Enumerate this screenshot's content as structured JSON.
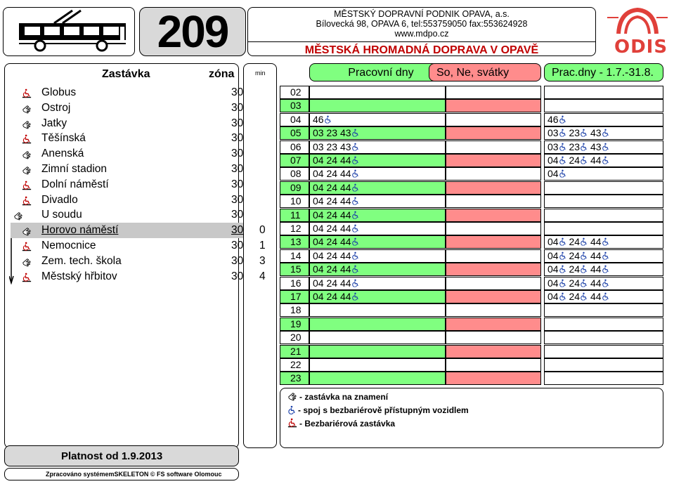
{
  "header": {
    "route": "209",
    "company_lines": [
      "MĚSTSKÝ DOPRAVNÍ PODNIK OPAVA, a.s.",
      "Bílovecká 98, OPAVA 6, tel:553759050 fax:553624928",
      "www.mdpo.cz"
    ],
    "company_title": "MĚSTSKÁ HROMADNÁ DOPRAVA V OPAVĚ",
    "logo_text": "ODIS"
  },
  "stops_header": {
    "stop": "Zastávka",
    "zone": "zóna",
    "min": "min"
  },
  "stops": [
    {
      "name": "Globus",
      "zone": "30",
      "min": "",
      "icons": [
        "barrier-free"
      ]
    },
    {
      "name": "Ostroj",
      "zone": "30",
      "min": "",
      "icons": [
        "on-request"
      ]
    },
    {
      "name": "Jatky",
      "zone": "30",
      "min": "",
      "icons": [
        "on-request"
      ]
    },
    {
      "name": "Těšínská",
      "zone": "30",
      "min": "",
      "icons": [
        "barrier-free"
      ]
    },
    {
      "name": "Anenská",
      "zone": "30",
      "min": "",
      "icons": [
        "on-request"
      ]
    },
    {
      "name": "Zimní stadion",
      "zone": "30",
      "min": "",
      "icons": [
        "on-request"
      ]
    },
    {
      "name": "Dolní náměstí",
      "zone": "30",
      "min": "",
      "icons": [
        "barrier-free"
      ]
    },
    {
      "name": "Divadlo",
      "zone": "30",
      "min": "",
      "icons": [
        "barrier-free"
      ]
    },
    {
      "name": "U soudu",
      "zone": "30",
      "min": "",
      "icons": [
        "on-request",
        "barrier-free"
      ]
    },
    {
      "name": "Horovo náměstí",
      "zone": "30",
      "min": "0",
      "icons": [
        "on-request"
      ],
      "current": true
    },
    {
      "name": "Nemocnice",
      "zone": "30",
      "min": "1",
      "icons": [
        "barrier-free"
      ]
    },
    {
      "name": "Zem. tech. škola",
      "zone": "30",
      "min": "3",
      "icons": [
        "on-request"
      ]
    },
    {
      "name": "Městský hřbitov",
      "zone": "30",
      "min": "4",
      "icons": [
        "barrier-free"
      ]
    }
  ],
  "timetable": {
    "columns": [
      "Pracovní dny",
      "So, Ne, svátky",
      "Prac.dny - 1.7.-31.8."
    ],
    "rows": [
      {
        "hour": "02",
        "work": [],
        "weekend": [],
        "summer": []
      },
      {
        "hour": "03",
        "work": [],
        "weekend": [],
        "summer": []
      },
      {
        "hour": "04",
        "work": [
          "46"
        ],
        "weekend": [],
        "summer": [
          "46"
        ]
      },
      {
        "hour": "05",
        "work": [
          "03",
          "23",
          "43"
        ],
        "weekend": [],
        "summer": [
          "03",
          "23",
          "43"
        ]
      },
      {
        "hour": "06",
        "work": [
          "03",
          "23",
          "43"
        ],
        "weekend": [],
        "summer": [
          "03",
          "23",
          "43"
        ]
      },
      {
        "hour": "07",
        "work": [
          "04",
          "24",
          "44"
        ],
        "weekend": [],
        "summer": [
          "04",
          "24",
          "44"
        ]
      },
      {
        "hour": "08",
        "work": [
          "04",
          "24",
          "44"
        ],
        "weekend": [],
        "summer": [
          "04"
        ]
      },
      {
        "hour": "09",
        "work": [
          "04",
          "24",
          "44"
        ],
        "weekend": [],
        "summer": []
      },
      {
        "hour": "10",
        "work": [
          "04",
          "24",
          "44"
        ],
        "weekend": [],
        "summer": []
      },
      {
        "hour": "11",
        "work": [
          "04",
          "24",
          "44"
        ],
        "weekend": [],
        "summer": []
      },
      {
        "hour": "12",
        "work": [
          "04",
          "24",
          "44"
        ],
        "weekend": [],
        "summer": []
      },
      {
        "hour": "13",
        "work": [
          "04",
          "24",
          "44"
        ],
        "weekend": [],
        "summer": [
          "04",
          "24",
          "44"
        ]
      },
      {
        "hour": "14",
        "work": [
          "04",
          "24",
          "44"
        ],
        "weekend": [],
        "summer": [
          "04",
          "24",
          "44"
        ]
      },
      {
        "hour": "15",
        "work": [
          "04",
          "24",
          "44"
        ],
        "weekend": [],
        "summer": [
          "04",
          "24",
          "44"
        ]
      },
      {
        "hour": "16",
        "work": [
          "04",
          "24",
          "44"
        ],
        "weekend": [],
        "summer": [
          "04",
          "24",
          "44"
        ]
      },
      {
        "hour": "17",
        "work": [
          "04",
          "24",
          "44"
        ],
        "weekend": [],
        "summer": [
          "04",
          "24",
          "44"
        ]
      },
      {
        "hour": "18",
        "work": [],
        "weekend": [],
        "summer": []
      },
      {
        "hour": "19",
        "work": [],
        "weekend": [],
        "summer": []
      },
      {
        "hour": "20",
        "work": [],
        "weekend": [],
        "summer": []
      },
      {
        "hour": "21",
        "work": [],
        "weekend": [],
        "summer": []
      },
      {
        "hour": "22",
        "work": [],
        "weekend": [],
        "summer": []
      },
      {
        "hour": "23",
        "work": [],
        "weekend": [],
        "summer": []
      }
    ]
  },
  "legend": [
    {
      "icon": "on-request-icon",
      "text": "- zastávka na znamení"
    },
    {
      "icon": "accessible-vehicle-icon",
      "text": "- spoj s bezbariérově přístupným vozidlem"
    },
    {
      "icon": "barrier-free-stop-icon",
      "text": "- Bezbariérová zastávka"
    }
  ],
  "footer": {
    "validity": "Platnost od 1.9.2013",
    "processed": "Zpracováno systémemSKELETON © FS software Olomouc"
  },
  "colors": {
    "green": "#80ff80",
    "red": "#ff8c8c",
    "header_gray": "#d9d9d9",
    "brand_red": "#c00000",
    "accessible_blue": "#1a3fa8"
  }
}
